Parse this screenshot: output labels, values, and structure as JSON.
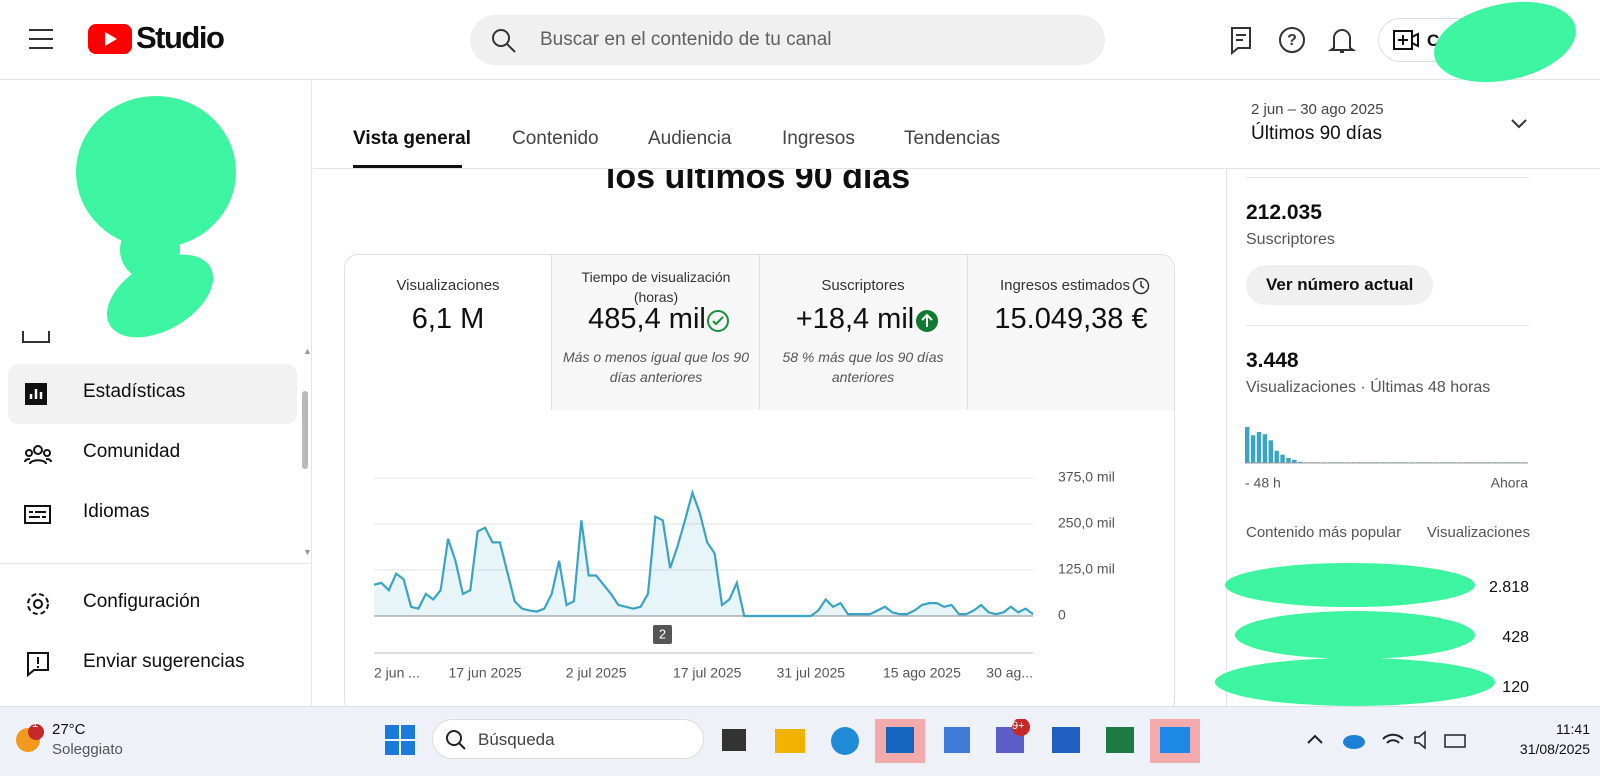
{
  "header": {
    "logo": "Studio",
    "search_placeholder": "Buscar en el contenido de tu canal",
    "create": "Crear"
  },
  "sidebar": {
    "items": [
      "Estadísticas",
      "Comunidad",
      "Idiomas",
      "Configuración",
      "Enviar sugerencias"
    ]
  },
  "tabs": [
    "Vista general",
    "Contenido",
    "Audiencia",
    "Ingresos",
    "Tendencias"
  ],
  "date_range": {
    "dates": "2 jun – 30 ago 2025",
    "label": "Últimos 90 días"
  },
  "heading": "los últimos 90 días",
  "metrics": [
    {
      "label": "Visualizaciones",
      "value": "6,1 M"
    },
    {
      "label": "Tiempo de visualización (horas)",
      "value": "485,4 mil",
      "note": "Más o menos igual que los 90 días anteriores"
    },
    {
      "label": "Suscriptores",
      "value": "+18,4 mil",
      "note": "58 % más que los 90 días anteriores"
    },
    {
      "label": "Ingresos estimados",
      "value": "15.049,38 €"
    }
  ],
  "chart_data": [
    {
      "type": "line",
      "color": "#3ba3c4",
      "grid": true,
      "categories": [
        "2 jun ...",
        null,
        null,
        null,
        null,
        null,
        null,
        null,
        null,
        null,
        null,
        null,
        null,
        null,
        null,
        "17 jun 2025",
        null,
        null,
        null,
        null,
        null,
        null,
        null,
        null,
        null,
        null,
        null,
        null,
        null,
        null,
        "2 jul 2025",
        null,
        null,
        null,
        null,
        null,
        null,
        null,
        null,
        null,
        null,
        null,
        null,
        null,
        null,
        "17 jul 2025",
        null,
        null,
        null,
        null,
        null,
        null,
        null,
        null,
        null,
        null,
        null,
        null,
        null,
        "31 jul 2025",
        null,
        null,
        null,
        null,
        null,
        null,
        null,
        null,
        null,
        null,
        null,
        null,
        null,
        null,
        "15 ago 2025",
        null,
        null,
        null,
        null,
        null,
        null,
        null,
        null,
        null,
        null,
        null,
        null,
        null,
        null,
        "30 ag..."
      ],
      "values": [
        85,
        90,
        70,
        115,
        100,
        25,
        20,
        60,
        45,
        70,
        210,
        150,
        60,
        70,
        230,
        240,
        200,
        200,
        120,
        40,
        20,
        15,
        12,
        20,
        60,
        150,
        30,
        40,
        260,
        110,
        110,
        85,
        60,
        30,
        25,
        20,
        25,
        60,
        270,
        260,
        130,
        190,
        260,
        335,
        280,
        200,
        170,
        30,
        45,
        90,
        0,
        0,
        0,
        0,
        0,
        0,
        0,
        0,
        0,
        0,
        15,
        45,
        25,
        35,
        5,
        5,
        5,
        5,
        15,
        25,
        10,
        5,
        5,
        15,
        30,
        35,
        35,
        25,
        30,
        5,
        5,
        15,
        30,
        10,
        5,
        10,
        25,
        10,
        20,
        5
      ],
      "ylim": [
        0,
        375
      ],
      "yticks": [
        0,
        {
          "value": 125,
          "label": "125,0 mil"
        },
        {
          "value": 250,
          "label": "250,0 mil"
        },
        {
          "value": 375,
          "label": "375,0 mil"
        }
      ],
      "annotation": "2"
    },
    {
      "type": "bar",
      "color": "#3ba3c4",
      "categories": [
        "- 48 h",
        null,
        null,
        null,
        null,
        null,
        null,
        null,
        null,
        null,
        null,
        null,
        null,
        null,
        null,
        null,
        null,
        null,
        null,
        null,
        null,
        null,
        null,
        null,
        null,
        null,
        null,
        null,
        null,
        null,
        null,
        null,
        null,
        null,
        null,
        null,
        null,
        null,
        null,
        null,
        null,
        null,
        null,
        null,
        null,
        null,
        null,
        "Ahora"
      ],
      "values": [
        100,
        77,
        86,
        80,
        63,
        34,
        23,
        14,
        9,
        3,
        2,
        2,
        2,
        2,
        2,
        2,
        2,
        2,
        2,
        2,
        2,
        2,
        2,
        2,
        2,
        2,
        2,
        2,
        2,
        2,
        2,
        2,
        2,
        2,
        2,
        2,
        2,
        2,
        2,
        2,
        2,
        2,
        2,
        2,
        2,
        2,
        2,
        2
      ],
      "ylim": [
        0,
        100
      ]
    }
  ],
  "right_panel": {
    "subscribers": "212.035",
    "subscribers_label": "Suscriptores",
    "button": "Ver número actual",
    "views": "3.448",
    "views_label": "Visualizaciones · Últimas 48 horas",
    "top_content": "Contenido más popular",
    "top_views": "Visualizaciones",
    "top_values": [
      "2.818",
      "428",
      "120"
    ]
  },
  "taskbar": {
    "weather_badge": "1",
    "temperature": "27°C",
    "weather": "Soleggiato",
    "search": "Búsqueda",
    "teams_badge": "9+",
    "time": "11:41",
    "date": "31/08/2025"
  }
}
